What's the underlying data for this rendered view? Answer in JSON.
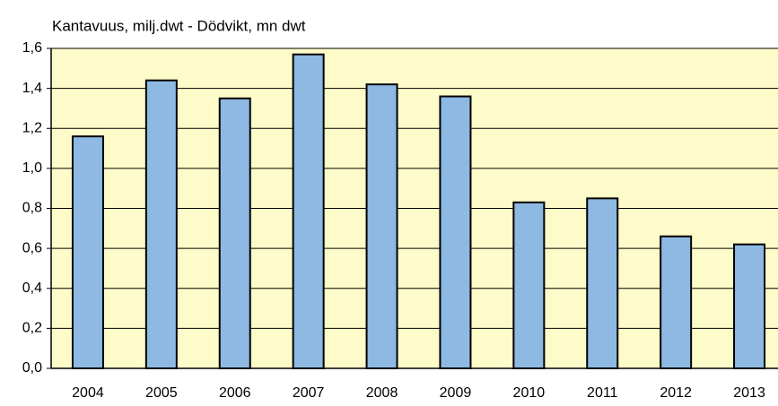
{
  "chart_data": {
    "type": "bar",
    "title": "Kantavuus, milj.dwt - Dödvikt, mn dwt",
    "categories": [
      "2004",
      "2005",
      "2006",
      "2007",
      "2008",
      "2009",
      "2010",
      "2011",
      "2012",
      "2013"
    ],
    "values": [
      1.16,
      1.44,
      1.35,
      1.57,
      1.42,
      1.36,
      0.83,
      0.85,
      0.66,
      0.62
    ],
    "color": "#8db9e3",
    "ylim": [
      0,
      1.6
    ],
    "yticks": [
      {
        "value": 0,
        "label": "0,0"
      },
      {
        "value": 0.2,
        "label": "0,2"
      },
      {
        "value": 0.4,
        "label": "0,4"
      },
      {
        "value": 0.6,
        "label": "0,6"
      },
      {
        "value": 0.8,
        "label": "0,8"
      },
      {
        "value": 1.0,
        "label": "1,0"
      },
      {
        "value": 1.2,
        "label": "1,2"
      },
      {
        "value": 1.4,
        "label": "1,4"
      },
      {
        "value": 1.6,
        "label": "1,6"
      }
    ],
    "grid": true
  }
}
